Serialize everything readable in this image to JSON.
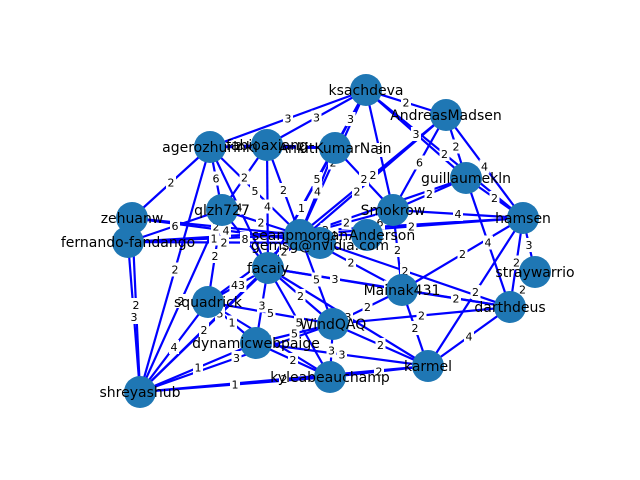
{
  "graph": {
    "node_color": "#1f77b4",
    "edge_color": "#0000ff",
    "nodes": [
      {
        "id": "ksachdeva",
        "label": "ksachdeva"
      },
      {
        "id": "AndreasMadsen",
        "label": "AndreasMadsen"
      },
      {
        "id": "agerozhurlnki",
        "label": "agerozhurlnki"
      },
      {
        "id": "fabioaxiang",
        "label": "fabioaxiang"
      },
      {
        "id": "AnkitKumarNain",
        "label": "AnkitKumarNain"
      },
      {
        "id": "guillaumekln",
        "label": "guillaumekln"
      },
      {
        "id": "Smokrow",
        "label": "Smokrow"
      },
      {
        "id": "qlzh727",
        "label": "qlzh727"
      },
      {
        "id": "zehuanw",
        "label": "zehuanw"
      },
      {
        "id": "fernando-fandango",
        "label": "fernando-fandango"
      },
      {
        "id": "seanpmorgan",
        "label": "seanpmorgan"
      },
      {
        "id": "gemsg",
        "label": "gemsg@nvidia.com"
      },
      {
        "id": "enderson",
        "label": "Anderson"
      },
      {
        "id": "hamsen",
        "label": "hamsen"
      },
      {
        "id": "straywarrio",
        "label": "straywarrio"
      },
      {
        "id": "facaiy",
        "label": "facaiy"
      },
      {
        "id": "Mainak431",
        "label": "Mainak431"
      },
      {
        "id": "darthdeus",
        "label": "darthdeus"
      },
      {
        "id": "squadrick",
        "label": "squadrick"
      },
      {
        "id": "WindQAQ",
        "label": "WindQAQ"
      },
      {
        "id": "dynamicwebpaige",
        "label": "dynamicwebpaige"
      },
      {
        "id": "karmel",
        "label": "karmel"
      },
      {
        "id": "kyleabeauchamp",
        "label": "kyleabeauchamp"
      },
      {
        "id": "shreyashub",
        "label": "shreyashub"
      }
    ],
    "edges": [
      {
        "s": "shreyashub",
        "t": "zehuanw",
        "w": "2"
      },
      {
        "s": "shreyashub",
        "t": "fernando-fandango",
        "w": "3"
      },
      {
        "s": "shreyashub",
        "t": "squadrick",
        "w": "4"
      },
      {
        "s": "shreyashub",
        "t": "dynamicwebpaige",
        "w": "1"
      },
      {
        "s": "shreyashub",
        "t": "kyleabeauchamp",
        "w": "1"
      },
      {
        "s": "shreyashub",
        "t": "karmel",
        "w": "2"
      },
      {
        "s": "shreyashub",
        "t": "qlzh727",
        "w": "2"
      },
      {
        "s": "shreyashub",
        "t": "facaiy",
        "w": "2"
      },
      {
        "s": "shreyashub",
        "t": "seanpmorgan",
        "w": "5"
      },
      {
        "s": "shreyashub",
        "t": "agerozhurlnki",
        "w": "2"
      },
      {
        "s": "shreyashub",
        "t": "WindQAQ",
        "w": "3"
      },
      {
        "s": "zehuanw",
        "t": "agerozhurlnki",
        "w": "2"
      },
      {
        "s": "zehuanw",
        "t": "seanpmorgan",
        "w": "2"
      },
      {
        "s": "zehuanw",
        "t": "gemsg",
        "w": "4"
      },
      {
        "s": "zehuanw",
        "t": "fernando-fandango",
        "w": "1"
      },
      {
        "s": "fernando-fandango",
        "t": "gemsg",
        "w": "2"
      },
      {
        "s": "fernando-fandango",
        "t": "seanpmorgan",
        "w": "1"
      },
      {
        "s": "fernando-fandango",
        "t": "hamsen",
        "w": "2"
      },
      {
        "s": "fernando-fandango",
        "t": "qlzh727",
        "w": "6"
      },
      {
        "s": "agerozhurlnki",
        "t": "ksachdeva",
        "w": "3"
      },
      {
        "s": "agerozhurlnki",
        "t": "fabioaxiang",
        "w": "2"
      },
      {
        "s": "agerozhurlnki",
        "t": "qlzh727",
        "w": "6"
      },
      {
        "s": "agerozhurlnki",
        "t": "facaiy",
        "w": "4"
      },
      {
        "s": "agerozhurlnki",
        "t": "seanpmorgan",
        "w": "5"
      },
      {
        "s": "agerozhurlnki",
        "t": "AnkitKumarNain",
        "w": "3"
      },
      {
        "s": "fabioaxiang",
        "t": "ksachdeva",
        "w": "3"
      },
      {
        "s": "fabioaxiang",
        "t": "AnkitKumarNain",
        "w": "2"
      },
      {
        "s": "fabioaxiang",
        "t": "facaiy",
        "w": "4"
      },
      {
        "s": "fabioaxiang",
        "t": "seanpmorgan",
        "w": "2"
      },
      {
        "s": "AnkitKumarNain",
        "t": "ksachdeva",
        "w": "3"
      },
      {
        "s": "AnkitKumarNain",
        "t": "seanpmorgan",
        "w": "4"
      },
      {
        "s": "AnkitKumarNain",
        "t": "Smokrow",
        "w": "2"
      },
      {
        "s": "AnkitKumarNain",
        "t": "facaiy",
        "w": "1"
      },
      {
        "s": "ksachdeva",
        "t": "AndreasMadsen",
        "w": "2"
      },
      {
        "s": "ksachdeva",
        "t": "guillaumekln",
        "w": "3"
      },
      {
        "s": "ksachdeva",
        "t": "Smokrow",
        "w": "3"
      },
      {
        "s": "ksachdeva",
        "t": "seanpmorgan",
        "w": "2"
      },
      {
        "s": "ksachdeva",
        "t": "hamsen",
        "w": "2"
      },
      {
        "s": "ksachdeva",
        "t": "facaiy",
        "w": "5"
      },
      {
        "s": "AndreasMadsen",
        "t": "guillaumekln",
        "w": "2"
      },
      {
        "s": "AndreasMadsen",
        "t": "hamsen",
        "w": "4"
      },
      {
        "s": "AndreasMadsen",
        "t": "seanpmorgan",
        "w": "2"
      },
      {
        "s": "AndreasMadsen",
        "t": "Smokrow",
        "w": "6"
      },
      {
        "s": "AndreasMadsen",
        "t": "facaiy",
        "w": "2"
      },
      {
        "s": "guillaumekln",
        "t": "hamsen",
        "w": "2"
      },
      {
        "s": "guillaumekln",
        "t": "Smokrow",
        "w": "2"
      },
      {
        "s": "guillaumekln",
        "t": "seanpmorgan",
        "w": "2"
      },
      {
        "s": "guillaumekln",
        "t": "darthdeus",
        "w": "4"
      },
      {
        "s": "hamsen",
        "t": "straywarrio",
        "w": "3"
      },
      {
        "s": "hamsen",
        "t": "darthdeus",
        "w": "2"
      },
      {
        "s": "hamsen",
        "t": "Mainak431",
        "w": "2"
      },
      {
        "s": "hamsen",
        "t": "seanpmorgan",
        "w": "2"
      },
      {
        "s": "hamsen",
        "t": "karmel",
        "w": "2"
      },
      {
        "s": "hamsen",
        "t": "Smokrow",
        "w": "4"
      },
      {
        "s": "straywarrio",
        "t": "darthdeus",
        "w": "2"
      },
      {
        "s": "darthdeus",
        "t": "karmel",
        "w": "4"
      },
      {
        "s": "darthdeus",
        "t": "Mainak431",
        "w": "2"
      },
      {
        "s": "darthdeus",
        "t": "WindQAQ",
        "w": "2"
      },
      {
        "s": "darthdeus",
        "t": "seanpmorgan",
        "w": "2"
      },
      {
        "s": "darthdeus",
        "t": "facaiy",
        "w": "2"
      },
      {
        "s": "karmel",
        "t": "kyleabeauchamp",
        "w": "2"
      },
      {
        "s": "karmel",
        "t": "WindQAQ",
        "w": "2"
      },
      {
        "s": "karmel",
        "t": "Mainak431",
        "w": "2"
      },
      {
        "s": "karmel",
        "t": "dynamicwebpaige",
        "w": "3"
      },
      {
        "s": "karmel",
        "t": "facaiy",
        "w": "3"
      },
      {
        "s": "kyleabeauchamp",
        "t": "dynamicwebpaige",
        "w": "2"
      },
      {
        "s": "kyleabeauchamp",
        "t": "WindQAQ",
        "w": "3"
      },
      {
        "s": "kyleabeauchamp",
        "t": "squadrick",
        "w": "5"
      },
      {
        "s": "kyleabeauchamp",
        "t": "facaiy",
        "w": "5"
      },
      {
        "s": "dynamicwebpaige",
        "t": "squadrick",
        "w": "1"
      },
      {
        "s": "dynamicwebpaige",
        "t": "WindQAQ",
        "w": "5"
      },
      {
        "s": "dynamicwebpaige",
        "t": "facaiy",
        "w": "3"
      },
      {
        "s": "squadrick",
        "t": "facaiy",
        "w": "43"
      },
      {
        "s": "squadrick",
        "t": "qlzh727",
        "w": "2"
      },
      {
        "s": "squadrick",
        "t": "WindQAQ",
        "w": "5"
      },
      {
        "s": "squadrick",
        "t": "seanpmorgan",
        "w": "1"
      },
      {
        "s": "facaiy",
        "t": "seanpmorgan",
        "w": "2"
      },
      {
        "s": "facaiy",
        "t": "WindQAQ",
        "w": "2"
      },
      {
        "s": "facaiy",
        "t": "Mainak431",
        "w": "3"
      },
      {
        "s": "WindQAQ",
        "t": "Mainak431",
        "w": "2"
      },
      {
        "s": "WindQAQ",
        "t": "seanpmorgan",
        "w": "5"
      },
      {
        "s": "Mainak431",
        "t": "seanpmorgan",
        "w": "2"
      },
      {
        "s": "Mainak431",
        "t": "Smokrow",
        "w": "2"
      },
      {
        "s": "Smokrow",
        "t": "seanpmorgan",
        "w": "2"
      },
      {
        "s": "Smokrow",
        "t": "enderson",
        "w": "6"
      },
      {
        "s": "seanpmorgan",
        "t": "gemsg",
        "w": "3"
      },
      {
        "s": "seanpmorgan",
        "t": "enderson",
        "w": "4"
      },
      {
        "s": "qlzh727",
        "t": "seanpmorgan",
        "w": "2"
      },
      {
        "s": "qlzh727",
        "t": "facaiy",
        "w": "8"
      },
      {
        "s": "qlzh727",
        "t": "fabioaxiang",
        "w": "2"
      }
    ]
  }
}
